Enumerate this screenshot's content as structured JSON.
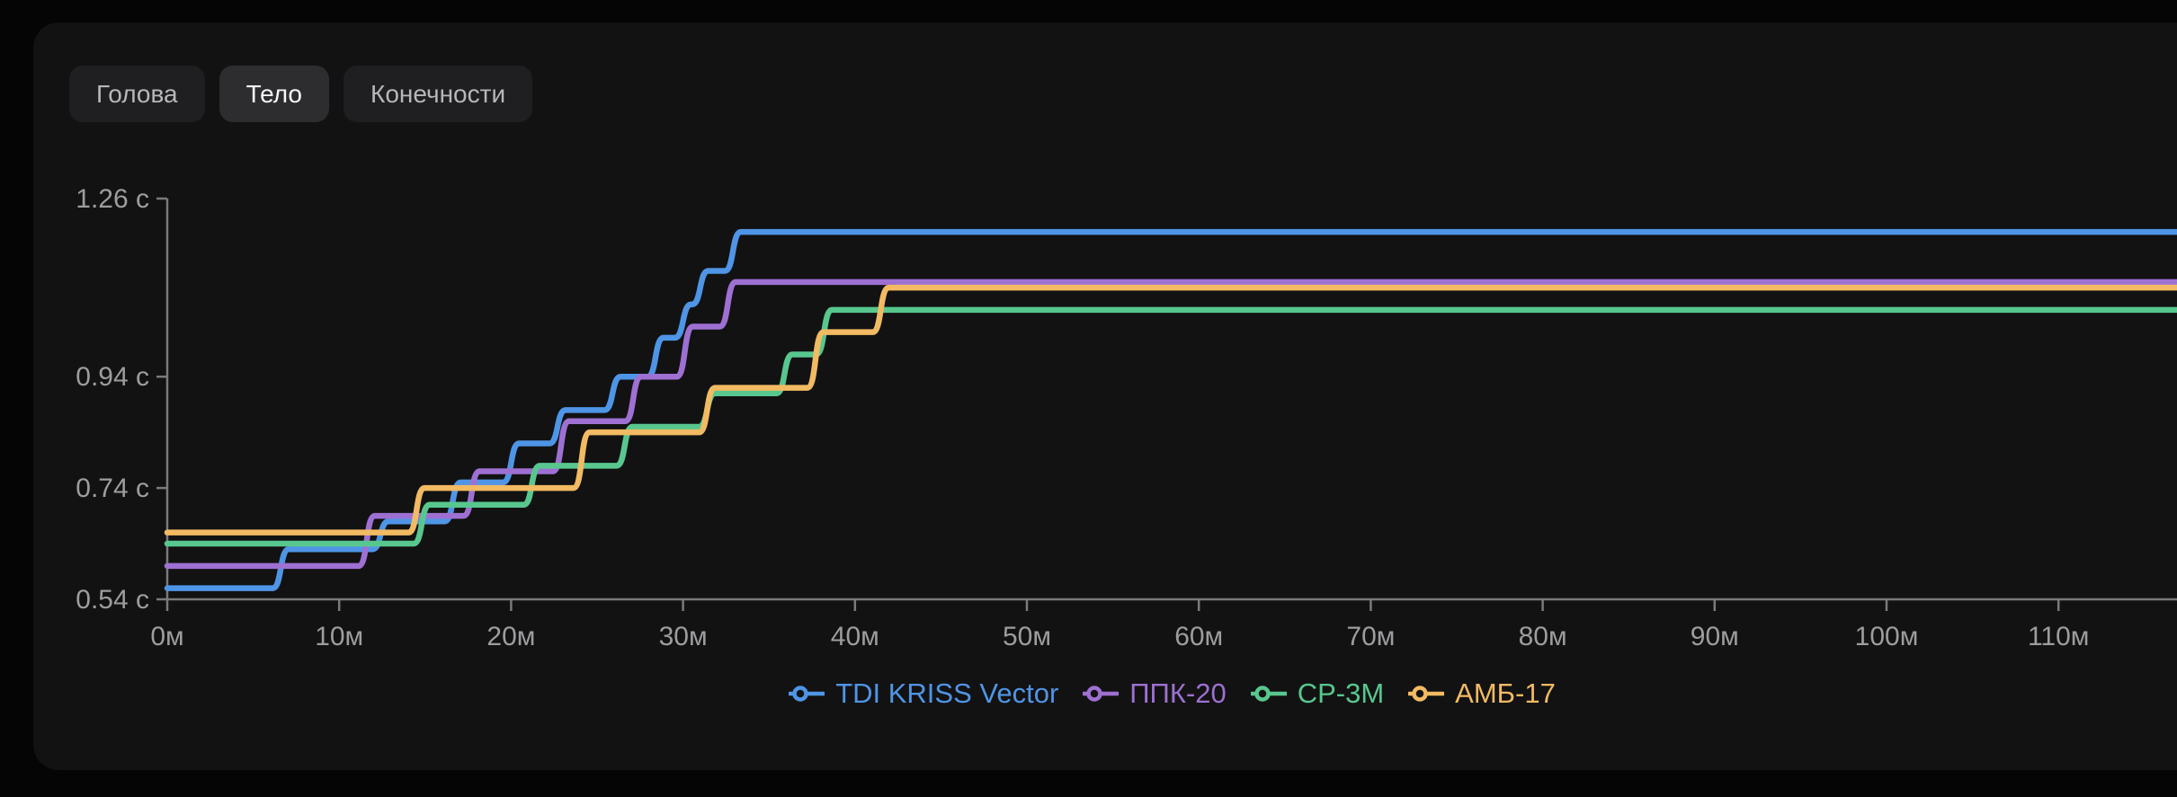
{
  "tabs": [
    {
      "label": "Голова",
      "active": false
    },
    {
      "label": "Тело",
      "active": true
    },
    {
      "label": "Конечности",
      "active": false
    }
  ],
  "colors": {
    "page_background": "#050506",
    "card_background": "#121213",
    "axis": "#7a7a7c",
    "tick_label": "#9d9d9f"
  },
  "chart_data": {
    "type": "line",
    "step": true,
    "title": "",
    "xlabel": "",
    "ylabel": "",
    "grid": false,
    "legend_position": "bottom",
    "x_unit": "м",
    "y_unit": "с",
    "x_range_m": [
      0,
      117
    ],
    "y_domain_s": [
      0.54,
      1.26
    ],
    "x_ticks": [
      {
        "label": "0м",
        "value": 0
      },
      {
        "label": "10м",
        "value": 10
      },
      {
        "label": "20м",
        "value": 20
      },
      {
        "label": "30м",
        "value": 30
      },
      {
        "label": "40м",
        "value": 40
      },
      {
        "label": "50м",
        "value": 50
      },
      {
        "label": "60м",
        "value": 60
      },
      {
        "label": "70м",
        "value": 70
      },
      {
        "label": "80м",
        "value": 80
      },
      {
        "label": "90м",
        "value": 90
      },
      {
        "label": "100м",
        "value": 100
      },
      {
        "label": "110м",
        "value": 110
      }
    ],
    "y_ticks": [
      {
        "label": "1.26 с",
        "value": 1.26
      },
      {
        "label": "0.94 с",
        "value": 0.94
      },
      {
        "label": "0.74 с",
        "value": 0.74
      },
      {
        "label": "0.54 с",
        "value": 0.54
      }
    ],
    "series": [
      {
        "name": "TDI KRISS Vector",
        "color": "#4f95e6",
        "points_m_s": [
          [
            0,
            0.56
          ],
          [
            6.6,
            0.63
          ],
          [
            12.4,
            0.68
          ],
          [
            16.6,
            0.75
          ],
          [
            20,
            0.82
          ],
          [
            22.7,
            0.88
          ],
          [
            25.9,
            0.94
          ],
          [
            28.4,
            1.01
          ],
          [
            30,
            1.07
          ],
          [
            31,
            1.13
          ],
          [
            32.9,
            1.2
          ]
        ]
      },
      {
        "name": "ППК-20",
        "color": "#9e70d2",
        "points_m_s": [
          [
            0,
            0.6
          ],
          [
            11.6,
            0.69
          ],
          [
            17.7,
            0.77
          ],
          [
            22.9,
            0.86
          ],
          [
            27.1,
            0.94
          ],
          [
            30.1,
            1.03
          ],
          [
            32.6,
            1.11
          ]
        ]
      },
      {
        "name": "СР-3М",
        "color": "#58c78e",
        "points_m_s": [
          [
            0,
            0.64
          ],
          [
            14.8,
            0.71
          ],
          [
            21.2,
            0.78
          ],
          [
            26.6,
            0.85
          ],
          [
            31.4,
            0.91
          ],
          [
            35.9,
            0.98
          ],
          [
            38.2,
            1.06
          ]
        ]
      },
      {
        "name": "АМБ-17",
        "color": "#f2ba62",
        "points_m_s": [
          [
            0,
            0.66
          ],
          [
            14.5,
            0.74
          ],
          [
            24.1,
            0.84
          ],
          [
            31.4,
            0.92
          ],
          [
            37.7,
            1.02
          ],
          [
            41.5,
            1.1
          ]
        ]
      }
    ]
  }
}
